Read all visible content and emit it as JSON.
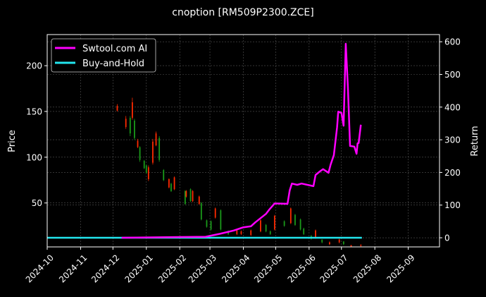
{
  "chart_data": {
    "type": "line",
    "title": "cnoption [RM509P2300.ZCE]",
    "ylabel_left": "Price",
    "ylabel_right": "Return",
    "xlim": [
      "2024-10-01",
      "2025-09-30"
    ],
    "ylim_left": [
      2,
      234
    ],
    "ylim_right": [
      -28,
      622
    ],
    "x_ticks": [
      "2024-10",
      "2024-11",
      "2024-12",
      "2025-01",
      "2025-02",
      "2025-03",
      "2025-04",
      "2025-05",
      "2025-06",
      "2025-07",
      "2025-08",
      "2025-09"
    ],
    "y_ticks_left": [
      50,
      100,
      150,
      200
    ],
    "y_ticks_right": [
      0,
      100,
      200,
      300,
      400,
      500,
      600
    ],
    "grid": true,
    "legend_position": "top-left",
    "colors": {
      "up": "#ff2a00",
      "down": "#1a9a1a",
      "strategy": "#ff00ff",
      "buy_hold": "#22e5ee",
      "background": "#000000",
      "grid": "#555555"
    },
    "candles": [
      {
        "date": "2024-12-05",
        "o": 151,
        "h": 158,
        "l": 150,
        "c": 156
      },
      {
        "date": "2024-12-13",
        "o": 133,
        "h": 145,
        "l": 131,
        "c": 142
      },
      {
        "date": "2024-12-17",
        "o": 143,
        "h": 145,
        "l": 123,
        "c": 126
      },
      {
        "date": "2024-12-19",
        "o": 143,
        "h": 165,
        "l": 141,
        "c": 160
      },
      {
        "date": "2024-12-21",
        "o": 140,
        "h": 142,
        "l": 119,
        "c": 121
      },
      {
        "date": "2024-12-24",
        "o": 111,
        "h": 120,
        "l": 110,
        "c": 118
      },
      {
        "date": "2024-12-26",
        "o": 111,
        "h": 112,
        "l": 95,
        "c": 97
      },
      {
        "date": "2024-12-30",
        "o": 96,
        "h": 97,
        "l": 87,
        "c": 88
      },
      {
        "date": "2025-01-01",
        "o": 91,
        "h": 92,
        "l": 82,
        "c": 83
      },
      {
        "date": "2025-01-03",
        "o": 76,
        "h": 91,
        "l": 74,
        "c": 89
      },
      {
        "date": "2025-01-07",
        "o": 94,
        "h": 120,
        "l": 92,
        "c": 117
      },
      {
        "date": "2025-01-10",
        "o": 113,
        "h": 128,
        "l": 112,
        "c": 126
      },
      {
        "date": "2025-01-13",
        "o": 121,
        "h": 123,
        "l": 95,
        "c": 97
      },
      {
        "date": "2025-01-17",
        "o": 86,
        "h": 87,
        "l": 74,
        "c": 75
      },
      {
        "date": "2025-01-22",
        "o": 67,
        "h": 77,
        "l": 66,
        "c": 76
      },
      {
        "date": "2025-01-24",
        "o": 71,
        "h": 72,
        "l": 62,
        "c": 63
      },
      {
        "date": "2025-01-27",
        "o": 65,
        "h": 79,
        "l": 64,
        "c": 78
      },
      {
        "date": "2025-02-06",
        "o": 63,
        "h": 64,
        "l": 48,
        "c": 49
      },
      {
        "date": "2025-02-07",
        "o": 57,
        "h": 64,
        "l": 56,
        "c": 63
      },
      {
        "date": "2025-02-11",
        "o": 65,
        "h": 66,
        "l": 51,
        "c": 52
      },
      {
        "date": "2025-02-13",
        "o": 52,
        "h": 64,
        "l": 51,
        "c": 63
      },
      {
        "date": "2025-02-19",
        "o": 49,
        "h": 58,
        "l": 48,
        "c": 57
      },
      {
        "date": "2025-02-21",
        "o": 50,
        "h": 51,
        "l": 31,
        "c": 32
      },
      {
        "date": "2025-02-26",
        "o": 31,
        "h": 32,
        "l": 23,
        "c": 24
      },
      {
        "date": "2025-03-02",
        "o": 30,
        "h": 31,
        "l": 20,
        "c": 21
      },
      {
        "date": "2025-03-06",
        "o": 34,
        "h": 45,
        "l": 33,
        "c": 44
      },
      {
        "date": "2025-03-11",
        "o": 42,
        "h": 43,
        "l": 20,
        "c": 21
      },
      {
        "date": "2025-03-18",
        "o": 19,
        "h": 20,
        "l": 15,
        "c": 16
      },
      {
        "date": "2025-03-26",
        "o": 16,
        "h": 21,
        "l": 15,
        "c": 20
      },
      {
        "date": "2025-03-30",
        "o": 16,
        "h": 20,
        "l": 15,
        "c": 19
      },
      {
        "date": "2025-04-08",
        "o": 15,
        "h": 21,
        "l": 14,
        "c": 20
      },
      {
        "date": "2025-04-17",
        "o": 19,
        "h": 32,
        "l": 18,
        "c": 31
      },
      {
        "date": "2025-04-22",
        "o": 26,
        "h": 27,
        "l": 18,
        "c": 19
      },
      {
        "date": "2025-04-26",
        "o": 19,
        "h": 20,
        "l": 15,
        "c": 16
      },
      {
        "date": "2025-04-30",
        "o": 21,
        "h": 37,
        "l": 20,
        "c": 36
      },
      {
        "date": "2025-05-09",
        "o": 30,
        "h": 31,
        "l": 24,
        "c": 25
      },
      {
        "date": "2025-05-15",
        "o": 28,
        "h": 45,
        "l": 27,
        "c": 44
      },
      {
        "date": "2025-05-19",
        "o": 37,
        "h": 38,
        "l": 25,
        "c": 26
      },
      {
        "date": "2025-05-24",
        "o": 32,
        "h": 33,
        "l": 20,
        "c": 21
      },
      {
        "date": "2025-05-27",
        "o": 22,
        "h": 23,
        "l": 15,
        "c": 16
      },
      {
        "date": "2025-06-03",
        "o": 14,
        "h": 15,
        "l": 10,
        "c": 11
      },
      {
        "date": "2025-06-07",
        "o": 12,
        "h": 21,
        "l": 11,
        "c": 20
      },
      {
        "date": "2025-06-13",
        "o": 10,
        "h": 10,
        "l": 6,
        "c": 7
      },
      {
        "date": "2025-06-20",
        "o": 5,
        "h": 8,
        "l": 4,
        "c": 7
      },
      {
        "date": "2025-06-29",
        "o": 7,
        "h": 11,
        "l": 6,
        "c": 10
      },
      {
        "date": "2025-07-03",
        "o": 8,
        "h": 8,
        "l": 4,
        "c": 5
      },
      {
        "date": "2025-07-10",
        "o": 2,
        "h": 4,
        "l": 2,
        "c": 4
      },
      {
        "date": "2025-07-19",
        "o": 3,
        "h": 5,
        "l": 2,
        "c": 4
      }
    ],
    "series": [
      {
        "name": "Swtool.com AI",
        "axis": "right",
        "points": [
          [
            "2024-12-09",
            0
          ],
          [
            "2025-02-25",
            3
          ],
          [
            "2025-03-10",
            12
          ],
          [
            "2025-03-23",
            22
          ],
          [
            "2025-04-01",
            32
          ],
          [
            "2025-04-08",
            35
          ],
          [
            "2025-04-12",
            47
          ],
          [
            "2025-04-17",
            60
          ],
          [
            "2025-04-22",
            73
          ],
          [
            "2025-04-25",
            86
          ],
          [
            "2025-04-30",
            105
          ],
          [
            "2025-05-12",
            104
          ],
          [
            "2025-05-14",
            145
          ],
          [
            "2025-05-16",
            166
          ],
          [
            "2025-05-21",
            162
          ],
          [
            "2025-05-25",
            166
          ],
          [
            "2025-06-05",
            158
          ],
          [
            "2025-06-07",
            192
          ],
          [
            "2025-06-11",
            203
          ],
          [
            "2025-06-14",
            210
          ],
          [
            "2025-06-19",
            199
          ],
          [
            "2025-06-21",
            224
          ],
          [
            "2025-06-24",
            253
          ],
          [
            "2025-06-27",
            339
          ],
          [
            "2025-06-28",
            386
          ],
          [
            "2025-07-01",
            382
          ],
          [
            "2025-07-03",
            343
          ],
          [
            "2025-07-05",
            594
          ],
          [
            "2025-07-07",
            462
          ],
          [
            "2025-07-09",
            281
          ],
          [
            "2025-07-13",
            279
          ],
          [
            "2025-07-15",
            257
          ],
          [
            "2025-07-16",
            289
          ],
          [
            "2025-07-17",
            290
          ],
          [
            "2025-07-19",
            346
          ]
        ]
      },
      {
        "name": "Buy-and-Hold",
        "axis": "right",
        "points": [
          [
            "2024-10-01",
            0
          ],
          [
            "2025-07-20",
            0
          ]
        ]
      }
    ]
  }
}
